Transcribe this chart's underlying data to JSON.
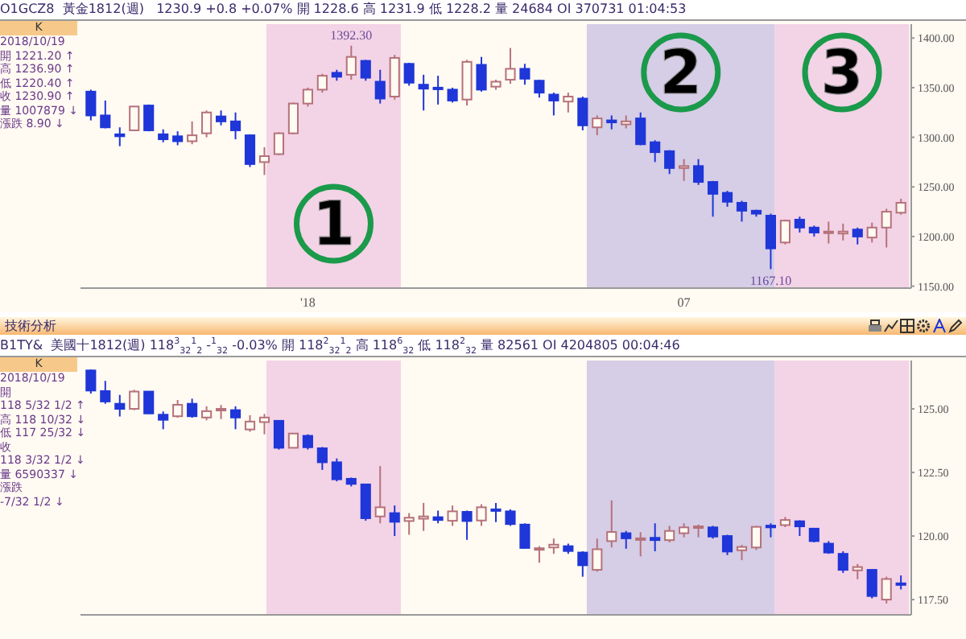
{
  "chart_data": [
    {
      "type": "candlestick",
      "title": "黃金1812(週)",
      "annotations": [
        "O1GCZ8",
        "1230.9   +0.8   +0.07%   開 1228.6   高 1231.9   低 1228.2   量 24684   OI 370731   01:04:53",
        "K",
        "2018/10/19",
        "開   1221.20 ↑",
        "高   1236.90 ↑",
        "低   1220.40 ↑",
        "收   1230.90 ↑",
        "量   1007879 ↓",
        "漲跌   8.90 ↓",
        {
          "text": "1392.30",
          "x": "2018-01-26",
          "y": 1392.3
        },
        {
          "text": "1167.10",
          "x": "2018-08-17",
          "y": 1167.1
        }
      ],
      "x": [
        "2017-09-22",
        "2017-09-29",
        "2017-10-06",
        "2017-10-13",
        "2017-10-20",
        "2017-10-27",
        "2017-11-03",
        "2017-11-10",
        "2017-11-17",
        "2017-11-24",
        "2017-12-01",
        "2017-12-08",
        "2017-12-15",
        "2017-12-22",
        "2017-12-29",
        "2018-01-05",
        "2018-01-12",
        "2018-01-19",
        "2018-01-26",
        "2018-02-02",
        "2018-02-09",
        "2018-02-16",
        "2018-02-23",
        "2018-03-02",
        "2018-03-09",
        "2018-03-16",
        "2018-03-23",
        "2018-03-30",
        "2018-04-06",
        "2018-04-13",
        "2018-04-20",
        "2018-04-27",
        "2018-05-04",
        "2018-05-11",
        "2018-05-18",
        "2018-05-25",
        "2018-06-01",
        "2018-06-08",
        "2018-06-15",
        "2018-06-22",
        "2018-06-29",
        "2018-07-06",
        "2018-07-13",
        "2018-07-20",
        "2018-07-27",
        "2018-08-03",
        "2018-08-10",
        "2018-08-17",
        "2018-08-24",
        "2018-08-31",
        "2018-09-07",
        "2018-09-14",
        "2018-09-21",
        "2018-09-28",
        "2018-10-05",
        "2018-10-12",
        "2018-10-19"
      ],
      "ohlc": [
        [
          1346,
          1348,
          1317,
          1322
        ],
        [
          1322,
          1337,
          1309,
          1310
        ],
        [
          1303,
          1310,
          1291,
          1301
        ],
        [
          1307,
          1331,
          1307,
          1331
        ],
        [
          1332,
          1333,
          1306,
          1307
        ],
        [
          1303,
          1308,
          1295,
          1298
        ],
        [
          1301,
          1306,
          1292,
          1296
        ],
        [
          1296,
          1316,
          1293,
          1302
        ],
        [
          1304,
          1327,
          1300,
          1325
        ],
        [
          1321,
          1327,
          1312,
          1316
        ],
        [
          1316,
          1325,
          1298,
          1307
        ],
        [
          1302,
          1303,
          1270,
          1273
        ],
        [
          1275,
          1290,
          1262,
          1281
        ],
        [
          1283,
          1305,
          1282,
          1304
        ],
        [
          1304,
          1335,
          1303,
          1334
        ],
        [
          1334,
          1350,
          1331,
          1348
        ],
        [
          1348,
          1364,
          1345,
          1362
        ],
        [
          1365,
          1368,
          1357,
          1361
        ],
        [
          1363,
          1392.3,
          1358,
          1381
        ],
        [
          1377,
          1378,
          1357,
          1360
        ],
        [
          1356,
          1368,
          1334,
          1339
        ],
        [
          1341,
          1383,
          1338,
          1380
        ],
        [
          1374,
          1375,
          1352,
          1355
        ],
        [
          1353,
          1363,
          1327,
          1349
        ],
        [
          1350,
          1362,
          1333,
          1349
        ],
        [
          1348,
          1350,
          1335,
          1337
        ],
        [
          1338,
          1378,
          1332,
          1376
        ],
        [
          1373,
          1381,
          1346,
          1348
        ],
        [
          1351,
          1358,
          1348,
          1356
        ],
        [
          1358,
          1390,
          1354,
          1369
        ],
        [
          1369,
          1374,
          1353,
          1359
        ],
        [
          1357,
          1358,
          1340,
          1345
        ],
        [
          1343,
          1345,
          1322,
          1337
        ],
        [
          1336,
          1345,
          1325,
          1341
        ],
        [
          1339,
          1341,
          1307,
          1312
        ],
        [
          1310,
          1322,
          1302,
          1319
        ],
        [
          1317,
          1322,
          1308,
          1315
        ],
        [
          1313,
          1322,
          1309,
          1316
        ],
        [
          1319,
          1325,
          1292,
          1293
        ],
        [
          1295,
          1297,
          1275,
          1285
        ],
        [
          1286,
          1287,
          1263,
          1269
        ],
        [
          1269,
          1278,
          1256,
          1271
        ],
        [
          1271,
          1278,
          1252,
          1255
        ],
        [
          1255,
          1256,
          1220,
          1243
        ],
        [
          1244,
          1246,
          1230,
          1235
        ],
        [
          1234,
          1236,
          1215,
          1226
        ],
        [
          1226,
          1227,
          1220,
          1223
        ],
        [
          1221,
          1223,
          1167.1,
          1188
        ],
        [
          1194,
          1217,
          1192,
          1216
        ],
        [
          1217,
          1220,
          1204,
          1209
        ],
        [
          1209,
          1211,
          1200,
          1204
        ],
        [
          1204,
          1215,
          1193,
          1205
        ],
        [
          1203,
          1213,
          1196,
          1205
        ],
        [
          1207,
          1209,
          1192,
          1200
        ],
        [
          1199,
          1214,
          1194,
          1209
        ],
        [
          1209,
          1228,
          1189,
          1225
        ],
        [
          1224,
          1238,
          1222,
          1234
        ]
      ],
      "colors": [
        "#1f36d8",
        "#1f36d8",
        "#1f36d8",
        "#b5727a",
        "#1f36d8",
        "#1f36d8",
        "#1f36d8",
        "#b5727a",
        "#b5727a",
        "#1f36d8",
        "#1f36d8",
        "#1f36d8",
        "#b5727a",
        "#b5727a",
        "#b5727a",
        "#b5727a",
        "#b5727a",
        "#1f36d8",
        "#b5727a",
        "#1f36d8",
        "#1f36d8",
        "#b5727a",
        "#1f36d8",
        "#1f36d8",
        "#1f36d8",
        "#1f36d8",
        "#b5727a",
        "#1f36d8",
        "#b5727a",
        "#b5727a",
        "#1f36d8",
        "#1f36d8",
        "#1f36d8",
        "#b5727a",
        "#1f36d8",
        "#b5727a",
        "#1f36d8",
        "#b5727a",
        "#1f36d8",
        "#1f36d8",
        "#1f36d8",
        "#b5727a",
        "#1f36d8",
        "#1f36d8",
        "#1f36d8",
        "#1f36d8",
        "#1f36d8",
        "#1f36d8",
        "#b5727a",
        "#1f36d8",
        "#1f36d8",
        "#b5727a",
        "#b5727a",
        "#1f36d8",
        "#b5727a",
        "#b5727a",
        "#b5727a"
      ],
      "xlim": [
        "2017-09-17",
        "2018-10-24"
      ],
      "xticks": [
        {
          "value": "2018-01-05",
          "label": "'18"
        },
        {
          "value": "2018-07-06",
          "label": "07"
        }
      ],
      "ylim": [
        1148,
        1414
      ],
      "yticks": [
        {
          "value": 1150,
          "label": "1150.00"
        },
        {
          "value": 1200,
          "label": "1200.00"
        },
        {
          "value": 1250,
          "label": "1250.00"
        },
        {
          "value": 1300,
          "label": "1300.00"
        },
        {
          "value": 1350,
          "label": "1350.00"
        },
        {
          "value": 1400,
          "label": "1400.00"
        }
      ],
      "bands": [
        {
          "axis": "x",
          "from": "2017-12-16",
          "to": "2018-02-19",
          "label": "1",
          "color": "#f3d3e6"
        },
        {
          "axis": "x",
          "from": "2018-05-20",
          "to": "2018-08-19",
          "label": "2",
          "color": "#d6cde6"
        },
        {
          "axis": "x",
          "from": "2018-08-19",
          "to": "2018-10-23",
          "label": "3",
          "color": "#f3d3e6"
        }
      ],
      "grid": false,
      "legend": false
    },
    {
      "type": "candlestick",
      "title": "技術分析",
      "annotations": [
        "B1TY&",
        "美國十1812(週)   118$^{3}$$_{32}$$^{1}$$_{2}$   -$^{1}$$_{32}$   -0.03%   開   118$^{2}$$_{32}$$^{1}$$_{2}$   高   118$^{6}$$_{32}$   低   118$^{2}$$_{32}$   量 82561   OI 4204805   00:04:46",
        "K",
        "2018/10/19",
        "開",
        "118 5/32 1/2 ↑",
        "高   118 10/32 ↓",
        "低   117 25/32 ↓",
        "收",
        "118 3/32 1/2 ↓",
        "量   6590337 ↓",
        "漲跌",
        "-7/32 1/2 ↓"
      ],
      "x": [
        "2017-09-22",
        "2017-09-29",
        "2017-10-06",
        "2017-10-13",
        "2017-10-20",
        "2017-10-27",
        "2017-11-03",
        "2017-11-10",
        "2017-11-17",
        "2017-11-24",
        "2017-12-01",
        "2017-12-08",
        "2017-12-15",
        "2017-12-22",
        "2017-12-29",
        "2018-01-05",
        "2018-01-12",
        "2018-01-19",
        "2018-01-26",
        "2018-02-02",
        "2018-02-09",
        "2018-02-16",
        "2018-02-23",
        "2018-03-02",
        "2018-03-09",
        "2018-03-16",
        "2018-03-23",
        "2018-03-30",
        "2018-04-06",
        "2018-04-13",
        "2018-04-20",
        "2018-04-27",
        "2018-05-04",
        "2018-05-11",
        "2018-05-18",
        "2018-05-25",
        "2018-06-01",
        "2018-06-08",
        "2018-06-15",
        "2018-06-22",
        "2018-06-29",
        "2018-07-06",
        "2018-07-13",
        "2018-07-20",
        "2018-07-27",
        "2018-08-03",
        "2018-08-10",
        "2018-08-17",
        "2018-08-24",
        "2018-08-31",
        "2018-09-07",
        "2018-09-14",
        "2018-09-21",
        "2018-09-28",
        "2018-10-05",
        "2018-10-12",
        "2018-10-19"
      ],
      "ohlc": [
        [
          126.51,
          126.55,
          125.6,
          125.72
        ],
        [
          125.7,
          126.1,
          125.2,
          125.29
        ],
        [
          125.2,
          125.55,
          124.7,
          125.0
        ],
        [
          125.0,
          125.75,
          124.95,
          125.68
        ],
        [
          125.68,
          125.7,
          124.8,
          124.82
        ],
        [
          124.77,
          124.9,
          124.2,
          124.57
        ],
        [
          124.71,
          125.35,
          124.65,
          125.16
        ],
        [
          125.2,
          125.4,
          124.65,
          124.71
        ],
        [
          124.66,
          125.1,
          124.55,
          124.91
        ],
        [
          124.96,
          125.15,
          124.6,
          125.0
        ],
        [
          124.95,
          125.1,
          124.2,
          124.66
        ],
        [
          124.19,
          124.75,
          124.1,
          124.5
        ],
        [
          124.48,
          124.8,
          124.0,
          124.66
        ],
        [
          124.53,
          124.55,
          123.4,
          123.47
        ],
        [
          123.47,
          124.05,
          123.45,
          124.03
        ],
        [
          123.94,
          124.0,
          123.4,
          123.49
        ],
        [
          123.45,
          123.5,
          122.6,
          122.9
        ],
        [
          122.9,
          123.05,
          122.15,
          122.23
        ],
        [
          122.25,
          122.3,
          121.95,
          122.05
        ],
        [
          122.03,
          122.05,
          120.6,
          120.7
        ],
        [
          120.77,
          122.75,
          120.5,
          121.13
        ],
        [
          120.9,
          121.2,
          120.0,
          120.56
        ],
        [
          120.59,
          120.9,
          120.05,
          120.72
        ],
        [
          120.68,
          121.3,
          120.2,
          120.77
        ],
        [
          120.74,
          121.0,
          120.5,
          120.63
        ],
        [
          120.6,
          121.2,
          120.4,
          120.97
        ],
        [
          120.95,
          121.0,
          119.85,
          120.59
        ],
        [
          120.61,
          121.25,
          120.4,
          121.13
        ],
        [
          121.05,
          121.3,
          120.55,
          121.0
        ],
        [
          120.97,
          121.05,
          120.4,
          120.47
        ],
        [
          120.45,
          120.5,
          119.5,
          119.53
        ],
        [
          119.48,
          119.6,
          118.95,
          119.52
        ],
        [
          119.55,
          119.9,
          119.3,
          119.66
        ],
        [
          119.6,
          119.7,
          119.3,
          119.41
        ],
        [
          119.35,
          119.4,
          118.4,
          118.85
        ],
        [
          118.67,
          119.9,
          118.6,
          119.48
        ],
        [
          119.8,
          121.4,
          119.55,
          120.16
        ],
        [
          120.11,
          120.2,
          119.5,
          119.91
        ],
        [
          119.87,
          120.15,
          119.2,
          119.91
        ],
        [
          119.93,
          120.5,
          119.4,
          119.84
        ],
        [
          119.84,
          120.4,
          119.75,
          120.2
        ],
        [
          120.11,
          120.5,
          119.95,
          120.34
        ],
        [
          120.36,
          120.45,
          119.95,
          120.38
        ],
        [
          120.34,
          120.4,
          119.9,
          119.98
        ],
        [
          120.0,
          120.05,
          119.25,
          119.39
        ],
        [
          119.44,
          119.65,
          119.05,
          119.57
        ],
        [
          119.55,
          120.4,
          119.45,
          120.36
        ],
        [
          120.41,
          120.5,
          119.95,
          120.34
        ],
        [
          120.43,
          120.75,
          120.35,
          120.63
        ],
        [
          120.58,
          120.62,
          120.0,
          120.38
        ],
        [
          120.29,
          120.32,
          119.75,
          119.8
        ],
        [
          119.7,
          119.8,
          119.3,
          119.35
        ],
        [
          119.3,
          119.4,
          118.55,
          118.67
        ],
        [
          118.65,
          118.9,
          118.3,
          118.78
        ],
        [
          118.67,
          118.7,
          117.55,
          117.64
        ],
        [
          117.5,
          118.4,
          117.35,
          118.31
        ],
        [
          118.14,
          118.45,
          117.9,
          118.09
        ]
      ],
      "colors": [
        "#1f36d8",
        "#1f36d8",
        "#1f36d8",
        "#b5727a",
        "#1f36d8",
        "#1f36d8",
        "#b5727a",
        "#1f36d8",
        "#b5727a",
        "#b5727a",
        "#1f36d8",
        "#b5727a",
        "#b5727a",
        "#1f36d8",
        "#b5727a",
        "#1f36d8",
        "#1f36d8",
        "#1f36d8",
        "#1f36d8",
        "#1f36d8",
        "#b5727a",
        "#1f36d8",
        "#b5727a",
        "#b5727a",
        "#1f36d8",
        "#b5727a",
        "#1f36d8",
        "#b5727a",
        "#1f36d8",
        "#1f36d8",
        "#1f36d8",
        "#b5727a",
        "#b5727a",
        "#1f36d8",
        "#1f36d8",
        "#b5727a",
        "#b5727a",
        "#1f36d8",
        "#b5727a",
        "#1f36d8",
        "#b5727a",
        "#b5727a",
        "#b5727a",
        "#1f36d8",
        "#1f36d8",
        "#b5727a",
        "#b5727a",
        "#1f36d8",
        "#b5727a",
        "#1f36d8",
        "#1f36d8",
        "#1f36d8",
        "#1f36d8",
        "#b5727a",
        "#1f36d8",
        "#b5727a",
        "#1f36d8"
      ],
      "xlim": [
        "2017-09-17",
        "2018-10-24"
      ],
      "ylim": [
        116.9,
        126.9
      ],
      "yticks": [
        {
          "value": 117.5,
          "label": "117.50"
        },
        {
          "value": 120,
          "label": "120.00"
        },
        {
          "value": 122.5,
          "label": "122.50"
        },
        {
          "value": 125,
          "label": "125.00"
        }
      ],
      "bands": [
        {
          "axis": "x",
          "from": "2017-12-16",
          "to": "2018-02-19",
          "color": "#f3d3e6"
        },
        {
          "axis": "x",
          "from": "2018-05-20",
          "to": "2018-08-19",
          "color": "#d6cde6"
        },
        {
          "axis": "x",
          "from": "2018-08-19",
          "to": "2018-10-23",
          "color": "#f3d3e6"
        }
      ],
      "grid": false,
      "legend": false
    }
  ]
}
